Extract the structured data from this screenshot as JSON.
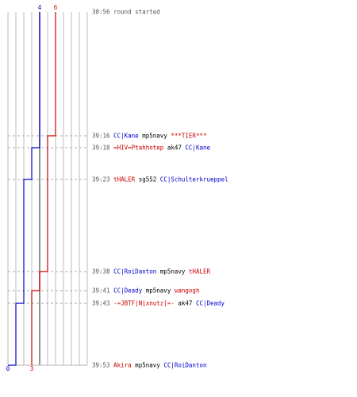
{
  "colors": {
    "team_a": "#0000cc",
    "team_b": "#cc0000",
    "grid": "#bbbbbb",
    "center": "#777777",
    "dash": "#aaaaaa",
    "time": "#555555",
    "weapon": "#000000"
  },
  "chart_data": {
    "type": "line",
    "title": "",
    "xlabel": "",
    "ylabel": "",
    "series": [
      {
        "team": "a",
        "start_value": 4,
        "end_value": 0,
        "steps": [
          {
            "time": "38:56",
            "value": 4
          },
          {
            "time": "39:18",
            "value": 3
          },
          {
            "time": "39:23",
            "value": 2
          },
          {
            "time": "39:43",
            "value": 1
          },
          {
            "time": "39:53",
            "value": 0
          }
        ]
      },
      {
        "team": "b",
        "start_value": 6,
        "end_value": 3,
        "steps": [
          {
            "time": "38:56",
            "value": 6
          },
          {
            "time": "39:16",
            "value": 5
          },
          {
            "time": "39:38",
            "value": 4
          },
          {
            "time": "39:41",
            "value": 3
          }
        ]
      }
    ]
  },
  "log": [
    {
      "time": "38:56",
      "text": "round started"
    },
    {
      "time": "39:16",
      "killer": "CC|Kane",
      "killer_team": "a",
      "weapon": "mp5navy",
      "victim": "***TIER***",
      "victim_team": "b"
    },
    {
      "time": "39:18",
      "killer": "=HIV=Ptahhotep",
      "killer_team": "b",
      "weapon": "ak47",
      "victim": "CC|Kane",
      "victim_team": "a"
    },
    {
      "time": "39:23",
      "killer": "tHALER",
      "killer_team": "b",
      "weapon": "sg552",
      "victim": "CC|Schulterkrueppel",
      "victim_team": "a"
    },
    {
      "time": "39:38",
      "killer": "CC|RoiDanton",
      "killer_team": "a",
      "weapon": "mp5navy",
      "victim": "tHALER",
      "victim_team": "b"
    },
    {
      "time": "39:41",
      "killer": "CC|Deady",
      "killer_team": "a",
      "weapon": "mp5navy",
      "victim": "wangogh",
      "victim_team": "b"
    },
    {
      "time": "39:43",
      "killer": "-=JBTF|Nixnutz[=-",
      "killer_team": "b",
      "weapon": "ak47",
      "victim": "CC|Deady",
      "victim_team": "a"
    },
    {
      "time": "39:53",
      "killer": "Akira",
      "killer_team": "b",
      "weapon": "mp5navy",
      "victim": "CC|RoiDanton",
      "victim_team": "a"
    }
  ]
}
